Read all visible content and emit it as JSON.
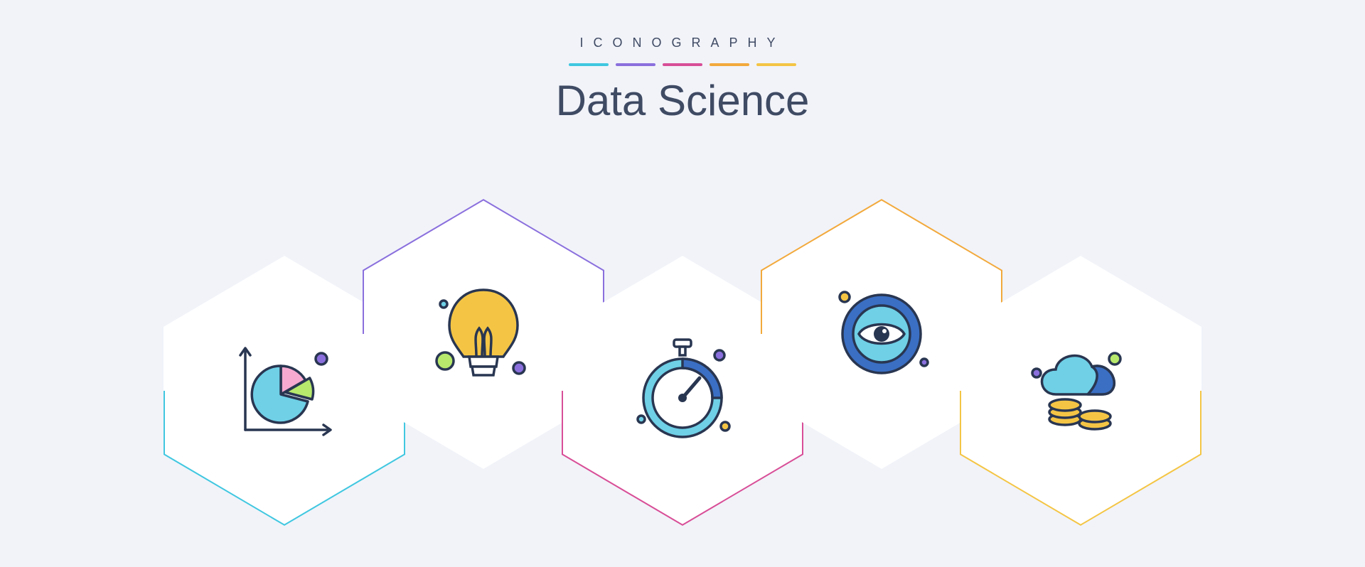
{
  "header": {
    "small_title": "ICONOGRAPHY",
    "big_title": "Data Science"
  },
  "palette": {
    "bg": "#f1f3f9",
    "text": "#3f4a63",
    "outline": "#293651"
  },
  "separator_colors": [
    "#40c7e0",
    "#8a6fdd",
    "#d84e97",
    "#f2a93c",
    "#f4c545"
  ],
  "hexagons": [
    {
      "accent": "#40c7e0",
      "icon": "pie-chart",
      "label": "pie-chart-icon"
    },
    {
      "accent": "#8a6fdd",
      "icon": "lightbulb",
      "label": "lightbulb-icon"
    },
    {
      "accent": "#d84e97",
      "icon": "stopwatch",
      "label": "stopwatch-icon"
    },
    {
      "accent": "#f2a93c",
      "icon": "eye-vision",
      "label": "eye-vision-icon"
    },
    {
      "accent": "#f4c545",
      "icon": "cloud-coins",
      "label": "cloud-coins-icon"
    }
  ],
  "icons": {
    "pie-chart": {
      "axis_color": "#293651",
      "slice_main": "#6fd0e6",
      "slice_b": "#b7e96d",
      "slice_c": "#f7a9d0",
      "dot": "#8a6fdd"
    },
    "lightbulb": {
      "bulb_fill": "#f4c545",
      "bulb_stroke": "#293651",
      "dot_a": "#b7e96d",
      "dot_b": "#8a6fdd",
      "dot_c": "#6fd0e6"
    },
    "stopwatch": {
      "ring_fill": "#6fd0e6",
      "ring_dark": "#3a6fc4",
      "stroke": "#293651",
      "dot_a": "#8a6fdd",
      "dot_b": "#f4c545",
      "dot_c": "#6fd0e6"
    },
    "eye-vision": {
      "outer_fill": "#3a6fc4",
      "inner_fill": "#6fd0e6",
      "iris_fill": "#293651",
      "stroke": "#293651",
      "dot_a": "#f4c545",
      "dot_b": "#8a6fdd"
    },
    "cloud-coins": {
      "cloud_fill": "#6fd0e6",
      "cloud_shadow": "#3a6fc4",
      "coin_fill": "#f4c545",
      "stroke": "#293651",
      "dot_a": "#b7e96d",
      "dot_b": "#8a6fdd"
    }
  }
}
